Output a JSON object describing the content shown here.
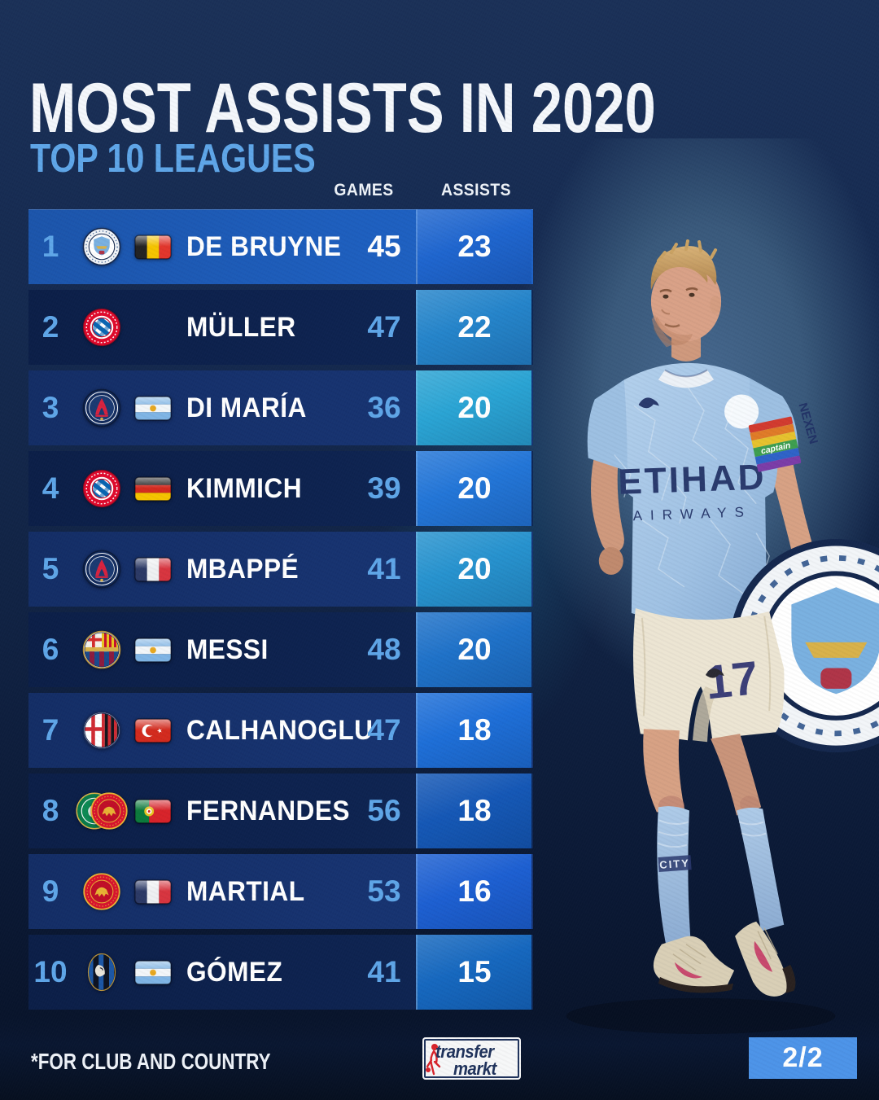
{
  "page": {
    "title": "MOST ASSISTS IN 2020",
    "subtitle": "TOP 10 LEAGUES"
  },
  "table": {
    "headers": {
      "games": "GAMES",
      "assists": "ASSISTS"
    },
    "rows": [
      {
        "rank": "1",
        "clubs": [
          "man-city"
        ],
        "flag": "belgium",
        "player": "DE BRUYNE",
        "games": "45",
        "assists": "23",
        "tone": "highlight",
        "tile": "#1f66cf"
      },
      {
        "rank": "2",
        "clubs": [
          "bayern"
        ],
        "flag": null,
        "player": "MÜLLER",
        "games": "47",
        "assists": "22",
        "tone": "dark",
        "tile": "#2585cb"
      },
      {
        "rank": "3",
        "clubs": [
          "psg"
        ],
        "flag": "argentina",
        "player": "DI MARÍA",
        "games": "36",
        "assists": "20",
        "tone": "medium",
        "tile": "#2aa4d4"
      },
      {
        "rank": "4",
        "clubs": [
          "bayern"
        ],
        "flag": "germany",
        "player": "KIMMICH",
        "games": "39",
        "assists": "20",
        "tone": "dark",
        "tile": "#2376d8"
      },
      {
        "rank": "5",
        "clubs": [
          "psg"
        ],
        "flag": "france",
        "player": "MBAPPÉ",
        "games": "41",
        "assists": "20",
        "tone": "medium",
        "tile": "#2793cf"
      },
      {
        "rank": "6",
        "clubs": [
          "barcelona"
        ],
        "flag": "argentina",
        "player": "MESSI",
        "games": "48",
        "assists": "20",
        "tone": "dark",
        "tile": "#1f72c9"
      },
      {
        "rank": "7",
        "clubs": [
          "ac-milan"
        ],
        "flag": "turkey",
        "player": "CALHANOGLU",
        "games": "47",
        "assists": "18",
        "tone": "medium",
        "tile": "#1e6fd8"
      },
      {
        "rank": "8",
        "clubs": [
          "sporting",
          "man-united"
        ],
        "flag": "portugal",
        "player": "FERNANDES",
        "games": "56",
        "assists": "18",
        "tone": "dark",
        "tile": "#1558b6"
      },
      {
        "rank": "9",
        "clubs": [
          "man-united"
        ],
        "flag": "france",
        "player": "MARTIAL",
        "games": "53",
        "assists": "16",
        "tone": "medium",
        "tile": "#1d60d2"
      },
      {
        "rank": "10",
        "clubs": [
          "atalanta"
        ],
        "flag": "argentina",
        "player": "GÓMEZ",
        "games": "41",
        "assists": "15",
        "tone": "dark",
        "tile": "#1668bf"
      }
    ]
  },
  "player": {
    "shirt_sponsor": "ETIHAD",
    "shirt_sponsor_sub": "AIRWAYS",
    "sleeve_sponsor": "NEXEN",
    "armband_text": "captain",
    "shorts_number": "17",
    "sock_text": "CITY"
  },
  "footer": {
    "footnote": "*FOR CLUB AND COUNTRY",
    "brand_line1": "transfer",
    "brand_line2": "markt",
    "page_indicator": "2/2"
  },
  "colors": {
    "background": "#122445",
    "row_dark": "#0c1f48",
    "row_medium": "#17336c",
    "row_highlight": "#1d5cb4",
    "accent_light_blue": "#5fa6e8",
    "badge_blue": "#4d94e8",
    "tile_border": "#c3e1ff",
    "title_white": "#f4f7fb"
  }
}
